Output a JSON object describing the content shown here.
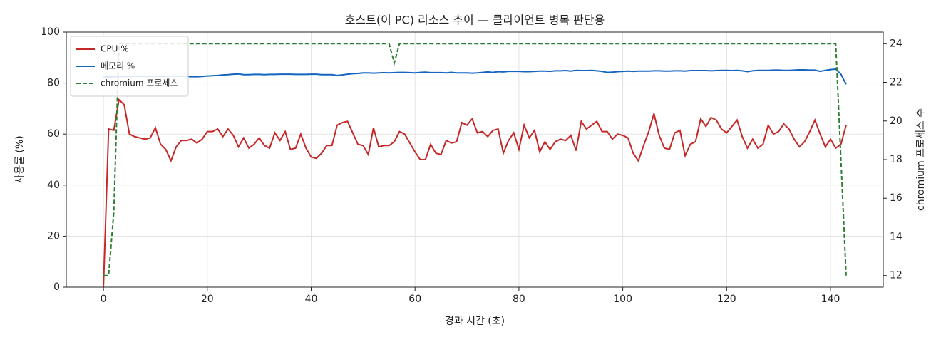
{
  "chart_data": {
    "type": "line",
    "title": "호스트(이 PC) 리소스 추이 — 클라이언트 병목 판단용",
    "x_label": "경과 시간 (초)",
    "y_label": "사용률 (%)",
    "y2_label": "chromium 프로세스 수",
    "x": [
      0,
      1,
      2,
      3,
      4,
      5,
      6,
      7,
      8,
      9,
      10,
      11,
      12,
      13,
      14,
      15,
      16,
      17,
      18,
      19,
      20,
      21,
      22,
      23,
      24,
      25,
      26,
      27,
      28,
      29,
      30,
      31,
      32,
      33,
      34,
      35,
      36,
      37,
      38,
      39,
      40,
      41,
      42,
      43,
      44,
      45,
      46,
      47,
      48,
      49,
      50,
      51,
      52,
      53,
      54,
      55,
      56,
      57,
      58,
      59,
      60,
      61,
      62,
      63,
      64,
      65,
      66,
      67,
      68,
      69,
      70,
      71,
      72,
      73,
      74,
      75,
      76,
      77,
      78,
      79,
      80,
      81,
      82,
      83,
      84,
      85,
      86,
      87,
      88,
      89,
      90,
      91,
      92,
      93,
      94,
      95,
      96,
      97,
      98,
      99,
      100,
      101,
      102,
      103,
      104,
      105,
      106,
      107,
      108,
      109,
      110,
      111,
      112,
      113,
      114,
      115,
      116,
      117,
      118,
      119,
      120,
      121,
      122,
      123,
      124,
      125,
      126,
      127,
      128,
      129,
      130,
      131,
      132,
      133,
      134,
      135,
      136,
      137,
      138,
      139,
      140,
      141,
      142,
      143
    ],
    "series": [
      {
        "name": "CPU %",
        "color": "#c62828",
        "linestyle": "solid",
        "axis": "y",
        "values": [
          0,
          62,
          61.5,
          73.5,
          71.5,
          60,
          59,
          58.5,
          58,
          58.5,
          62.5,
          56,
          54,
          49.5,
          55,
          57.5,
          57.5,
          58,
          56.5,
          58,
          61,
          61,
          62,
          59,
          62,
          59.5,
          55,
          58.5,
          54.5,
          56,
          58.5,
          55.5,
          54.5,
          60.5,
          57.5,
          61,
          54,
          54.5,
          60,
          54.5,
          51,
          50.5,
          52.5,
          55.5,
          55.5,
          63.5,
          64.5,
          65,
          60.5,
          56,
          55.5,
          52,
          62.5,
          55,
          55.5,
          55.5,
          57,
          61,
          60,
          56.5,
          53,
          50,
          50,
          56,
          52.5,
          52,
          57.5,
          56.5,
          57,
          64.5,
          63.5,
          66,
          60.5,
          61,
          59,
          61.5,
          62,
          52.5,
          57.5,
          60.5,
          54,
          63.5,
          58.5,
          61.5,
          53,
          57,
          54,
          57,
          58,
          57.5,
          59.5,
          53.5,
          65,
          62,
          63.5,
          65,
          61,
          61,
          58,
          60,
          59.5,
          58.5,
          52.5,
          49.5,
          55.5,
          61,
          68,
          59.5,
          54.5,
          54,
          60.5,
          61.5,
          51.5,
          56,
          57,
          66,
          63,
          66.5,
          65.5,
          62,
          60.5,
          63,
          65.5,
          59,
          54.5,
          58,
          54.5,
          56,
          63.5,
          60,
          61,
          64,
          62,
          58,
          55,
          57,
          61,
          65.5,
          60,
          55,
          58,
          54.5,
          56,
          63.5
        ]
      },
      {
        "name": "메모리 %",
        "color": "#1565c0",
        "linestyle": "solid",
        "axis": "y",
        "values": [
          82.3,
          82.4,
          82.5,
          82.5,
          82.6,
          82.6,
          82.7,
          82.7,
          82.6,
          82.6,
          82.7,
          82.7,
          82.6,
          82.7,
          82.8,
          82.7,
          82.6,
          82.5,
          82.5,
          82.6,
          82.8,
          82.9,
          83,
          83.2,
          83.3,
          83.5,
          83.6,
          83.3,
          83.3,
          83.4,
          83.4,
          83.3,
          83.4,
          83.4,
          83.5,
          83.5,
          83.5,
          83.4,
          83.4,
          83.4,
          83.5,
          83.5,
          83.3,
          83.3,
          83.3,
          83,
          83.2,
          83.5,
          83.7,
          83.8,
          84,
          84,
          83.9,
          84,
          84.1,
          84,
          84.1,
          84.2,
          84.2,
          84.1,
          84,
          84.2,
          84.3,
          84.1,
          84.1,
          84.1,
          84,
          84.2,
          84,
          84,
          84,
          83.9,
          84,
          84.2,
          84.4,
          84.2,
          84.5,
          84.4,
          84.6,
          84.6,
          84.6,
          84.5,
          84.5,
          84.6,
          84.7,
          84.7,
          84.6,
          84.8,
          84.8,
          84.9,
          84.7,
          85,
          84.9,
          84.9,
          85,
          84.8,
          84.6,
          84.2,
          84.3,
          84.5,
          84.6,
          84.7,
          84.6,
          84.7,
          84.7,
          84.7,
          84.8,
          84.8,
          84.7,
          84.7,
          84.8,
          84.8,
          84.7,
          84.9,
          84.9,
          84.9,
          84.9,
          84.8,
          84.9,
          85,
          85,
          84.9,
          85,
          84.8,
          84.5,
          84.8,
          85,
          85,
          85,
          85.1,
          85.1,
          85,
          85,
          85.1,
          85.2,
          85.2,
          85.1,
          85.1,
          84.6,
          85,
          85.3,
          85.5,
          83.5,
          79.5
        ]
      },
      {
        "name": "chromium 프로세스",
        "color": "#2e7d32",
        "linestyle": "dashed",
        "axis": "y2",
        "values": [
          12,
          12,
          15.3,
          24,
          24,
          24,
          24,
          24,
          24,
          24,
          24,
          24,
          24,
          24,
          24,
          24,
          24,
          24,
          24,
          24,
          24,
          24,
          24,
          24,
          24,
          24,
          24,
          24,
          24,
          24,
          24,
          24,
          24,
          24,
          24,
          24,
          24,
          24,
          24,
          24,
          24,
          24,
          24,
          24,
          24,
          24,
          24,
          24,
          24,
          24,
          24,
          24,
          24,
          24,
          24,
          24,
          23,
          24,
          24,
          24,
          24,
          24,
          24,
          24,
          24,
          24,
          24,
          24,
          24,
          24,
          24,
          24,
          24,
          24,
          24,
          24,
          24,
          24,
          24,
          24,
          24,
          24,
          24,
          24,
          24,
          24,
          24,
          24,
          24,
          24,
          24,
          24,
          24,
          24,
          24,
          24,
          24,
          24,
          24,
          24,
          24,
          24,
          24,
          24,
          24,
          24,
          24,
          24,
          24,
          24,
          24,
          24,
          24,
          24,
          24,
          24,
          24,
          24,
          24,
          24,
          24,
          24,
          24,
          24,
          24,
          24,
          24,
          24,
          24,
          24,
          24,
          24,
          24,
          24,
          24,
          24,
          24,
          24,
          24,
          24,
          24,
          24,
          18,
          12
        ]
      }
    ],
    "xlim": [
      -7.15,
      150.15
    ],
    "xticks": [
      0,
      20,
      40,
      60,
      80,
      100,
      120,
      140
    ],
    "ylim": [
      0,
      100
    ],
    "yticks": [
      0,
      20,
      40,
      60,
      80,
      100
    ],
    "y2lim": [
      11.4,
      24.6
    ],
    "y2ticks": [
      12,
      14,
      16,
      18,
      20,
      22,
      24
    ],
    "grid": true,
    "legend": "upper left"
  }
}
